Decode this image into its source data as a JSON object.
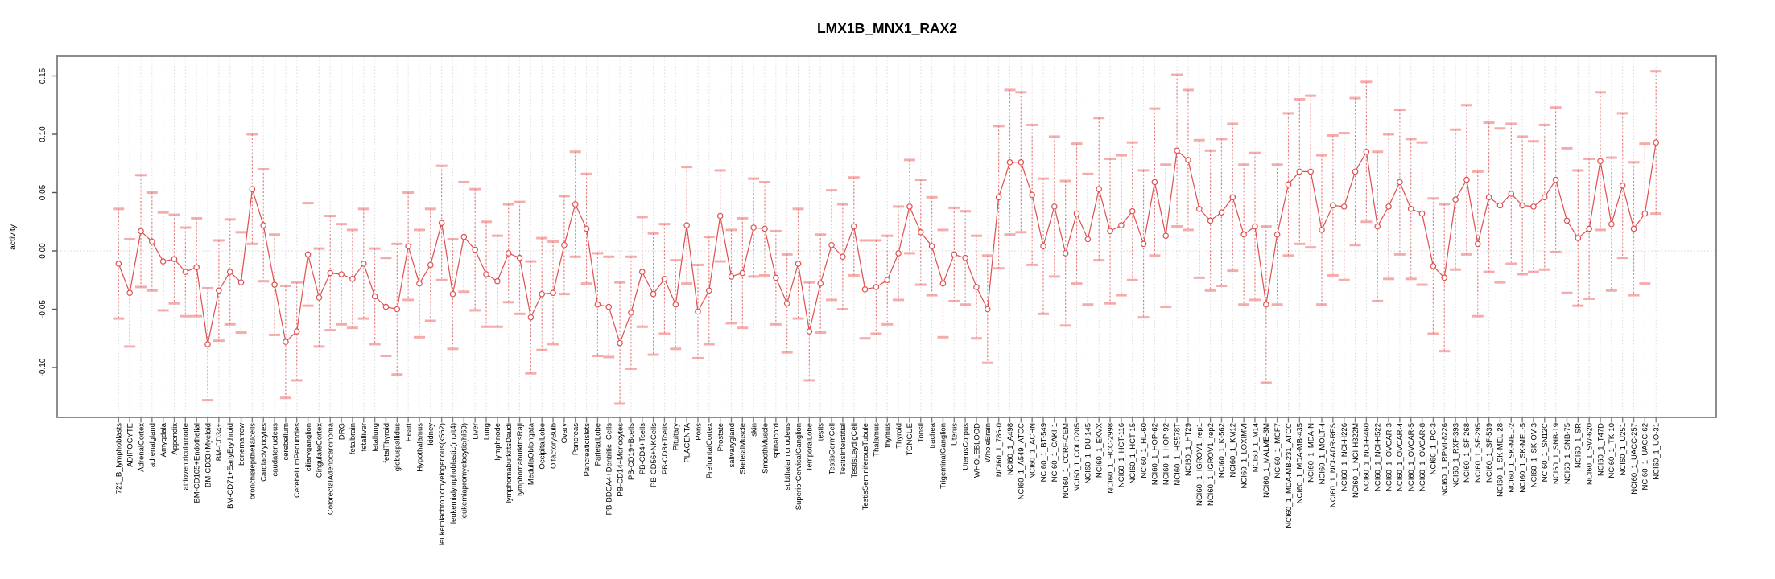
{
  "window": {
    "background": "#ffffff"
  },
  "chart_data": {
    "type": "line",
    "subtype": "points-with-error-bars",
    "title": "LMX1B_MNX1_RAX2",
    "xlabel": "",
    "ylabel": "activity",
    "ylim": [
      -0.143,
      0.167
    ],
    "yticks": [
      0.15,
      0.1,
      0.05,
      0.0,
      -0.05,
      -0.1
    ],
    "grid": "vertical dotted gridline at every category; horizontal dotted line at y=0",
    "legend": "none",
    "colors": {
      "series": "#e04f4f",
      "error_bar_line": "#e86060",
      "error_bar_cap": "#f08080",
      "gridline": "#dcdcdc",
      "box": "#7f7f7f",
      "tick": "#808080"
    },
    "categories": [
      "721_B_lymphoblasts",
      "ADIPOCYTE",
      "AdrenalCortex",
      "adrenalgland",
      "Amygdala",
      "Appendix",
      "atrioventricularnode",
      "BM-CD105+Endothelial",
      "BM-CD33+Myeloid",
      "BM-CD34+",
      "BM-CD71+EarlyErythroid",
      "bonemarrow",
      "bronchialepithelialcells",
      "CardiacMyocytes",
      "caudatenucleus",
      "cerebellum",
      "CerebellumPeduncles",
      "ciliaryganglion",
      "CingulateCortex",
      "ColorectalAdenocarcinoma",
      "DRG",
      "fetalbrain",
      "fetalliver",
      "fetallung",
      "fetalThyroid",
      "globuspallidus",
      "Heart",
      "Hypothalamus",
      "kidney",
      "leukemiachronicmyelogenous(k562)",
      "leukemialymphoblastic(molt4)",
      "leukemiapromyelocytic(hl60)",
      "Liver",
      "Lung",
      "lymphnode",
      "lymphomaburkittsDaudi",
      "lymphomaburkittsRaji",
      "MedullaOblongata",
      "OccipitalLobe",
      "OlfactoryBulb",
      "Ovary",
      "Pancreas",
      "Pancreaticislets",
      "ParietalLobe",
      "PB-BDCA4+Dentritic_Cells",
      "PB-CD14+Monocytes",
      "PB-CD19+Bcells",
      "PB-CD4+Tcells",
      "PB-CD56+NKCells",
      "PB-CD8+Tcells",
      "Pituitary",
      "PLACENTA",
      "Pons",
      "PrefrontalCortex",
      "Prostate",
      "salivarygland",
      "SkeletalMuscle",
      "skin",
      "SmoothMuscle",
      "spinalcord",
      "subthalamicnucleus",
      "SuperiorCervicalGanglion",
      "TemporalLobe",
      "testis",
      "TestisGermCell",
      "TestisInterstitial",
      "TestisLeydigCell",
      "TestisSeminiferousTubule",
      "Thalamus",
      "thymus",
      "Thyroid",
      "TONGUE",
      "Tonsil",
      "trachea",
      "TrigeminalGanglion",
      "Uterus",
      "UterusCorpus",
      "WHOLEBLOOD",
      "WholeBrain",
      "NCI60_1_786-0",
      "NCI60_1_A498",
      "NCI60_1_A549_ATCC",
      "NCI60_1_ACHN",
      "NCI60_1_BT-549",
      "NCI60_1_CAKI-1",
      "NCI60_1_CCRF-CEM",
      "NCI60_1_COLO205",
      "NCI60_1_DU-145",
      "NCI60_1_EKVX",
      "NCI60_1_HCC-2998",
      "NCI60_1_HCT-116",
      "NCI60_1_HCT-15",
      "NCI60_1_HL-60",
      "NCI60_1_HOP-62",
      "NCI60_1_HOP-92",
      "NCI60_1_HS578T",
      "NCI60_1_HT29",
      "NCI60_1_IGROV1_rep1",
      "NCI60_1_IGROV1_rep2",
      "NCI60_1_K-562",
      "NCI60_1_KM12",
      "NCI60_1_LOXIMVI",
      "NCI60_1_M14",
      "NCI60_1_MALME-3M",
      "NCI60_1_MCF7",
      "NCI60_1_MDA-MB-231_ATCC",
      "NCI60_1_MDA-MB-435",
      "NCI60_1_MDA-N",
      "NCI60_1_MOLT-4",
      "NCI60_1_NCI-ADR-RES",
      "NCI60_1_NCI-H226",
      "NCI60_1_NCI-H322M",
      "NCI60_1_NCI-H460",
      "NCI60_1_NCI-H522",
      "NCI60_1_OVCAR-3",
      "NCI60_1_OVCAR-4",
      "NCI60_1_OVCAR-5",
      "NCI60_1_OVCAR-8",
      "NCI60_1_PC-3",
      "NCI60_1_RPMI-8226",
      "NCI60_1_RXF-393",
      "NCI60_1_SF-268",
      "NCI60_1_SF-295",
      "NCI60_1_SF-539",
      "NCI60_1_SK-MEL-28",
      "NCI60_1_SK-MEL-2",
      "NCI60_1_SK-MEL-5",
      "NCI60_1_SK-OV-3",
      "NCI60_1_SN12C",
      "NCI60_1_SNB-19",
      "NCI60_1_SNB-75",
      "NCI60_1_SR",
      "NCI60_1_SW-620",
      "NCI60_1_T47D",
      "NCI60_1_TK-10",
      "NCI60_1_U251",
      "NCI60_1_UACC-257",
      "NCI60_1_UACC-62",
      "NCI60_1_UO-31"
    ],
    "values": [
      -0.011,
      -0.036,
      0.017,
      0.008,
      -0.009,
      -0.007,
      -0.018,
      -0.014,
      -0.08,
      -0.034,
      -0.018,
      -0.027,
      0.053,
      0.022,
      -0.029,
      -0.078,
      -0.069,
      -0.003,
      -0.04,
      -0.019,
      -0.02,
      -0.024,
      -0.011,
      -0.039,
      -0.048,
      -0.05,
      0.004,
      -0.028,
      -0.012,
      0.024,
      -0.037,
      0.012,
      0.001,
      -0.02,
      -0.026,
      -0.002,
      -0.006,
      -0.057,
      -0.037,
      -0.036,
      0.005,
      0.04,
      0.019,
      -0.046,
      -0.048,
      -0.079,
      -0.053,
      -0.018,
      -0.037,
      -0.024,
      -0.046,
      0.022,
      -0.052,
      -0.034,
      0.03,
      -0.022,
      -0.019,
      0.02,
      0.019,
      -0.023,
      -0.045,
      -0.011,
      -0.069,
      -0.028,
      0.005,
      -0.005,
      0.021,
      -0.033,
      -0.031,
      -0.025,
      -0.002,
      0.038,
      0.016,
      0.004,
      -0.028,
      -0.003,
      -0.006,
      -0.031,
      -0.05,
      0.046,
      0.076,
      0.076,
      0.048,
      0.004,
      0.038,
      -0.002,
      0.032,
      0.01,
      0.053,
      0.017,
      0.022,
      0.034,
      0.006,
      0.059,
      0.013,
      0.086,
      0.078,
      0.036,
      0.026,
      0.033,
      0.046,
      0.014,
      0.021,
      -0.046,
      0.014,
      0.057,
      0.068,
      0.068,
      0.018,
      0.039,
      0.038,
      0.068,
      0.085,
      0.021,
      0.038,
      0.059,
      0.036,
      0.032,
      -0.013,
      -0.023,
      0.044,
      0.061,
      0.006,
      0.046,
      0.039,
      0.049,
      0.039,
      0.038,
      0.046,
      0.061,
      0.026,
      0.011,
      0.019,
      0.077,
      0.023,
      0.056,
      0.019,
      0.032,
      0.093
    ],
    "errors": [
      0.047,
      0.046,
      0.048,
      0.042,
      0.042,
      0.038,
      0.038,
      0.042,
      0.048,
      0.043,
      0.045,
      0.043,
      0.047,
      0.048,
      0.043,
      0.048,
      0.042,
      0.044,
      0.042,
      0.049,
      0.043,
      0.042,
      0.047,
      0.041,
      0.042,
      0.056,
      0.046,
      0.046,
      0.048,
      0.049,
      0.047,
      0.047,
      0.052,
      0.045,
      0.039,
      0.042,
      0.048,
      0.048,
      0.048,
      0.044,
      0.042,
      0.045,
      0.047,
      0.044,
      0.043,
      0.052,
      0.048,
      0.047,
      0.052,
      0.047,
      0.038,
      0.05,
      0.04,
      0.046,
      0.039,
      0.04,
      0.047,
      0.042,
      0.04,
      0.04,
      0.042,
      0.047,
      0.042,
      0.042,
      0.047,
      0.045,
      0.042,
      0.042,
      0.04,
      0.038,
      0.04,
      0.04,
      0.045,
      0.042,
      0.046,
      0.04,
      0.04,
      0.044,
      0.046,
      0.061,
      0.062,
      0.06,
      0.06,
      0.058,
      0.06,
      0.062,
      0.06,
      0.056,
      0.061,
      0.062,
      0.06,
      0.059,
      0.063,
      0.063,
      0.061,
      0.065,
      0.06,
      0.059,
      0.06,
      0.063,
      0.063,
      0.06,
      0.063,
      0.067,
      0.06,
      0.061,
      0.062,
      0.065,
      0.064,
      0.06,
      0.063,
      0.063,
      0.06,
      0.064,
      0.062,
      0.062,
      0.06,
      0.061,
      0.058,
      0.063,
      0.06,
      0.064,
      0.062,
      0.064,
      0.066,
      0.06,
      0.059,
      0.056,
      0.062,
      0.062,
      0.062,
      0.058,
      0.06,
      0.059,
      0.057,
      0.062,
      0.057,
      0.06,
      0.061
    ]
  }
}
